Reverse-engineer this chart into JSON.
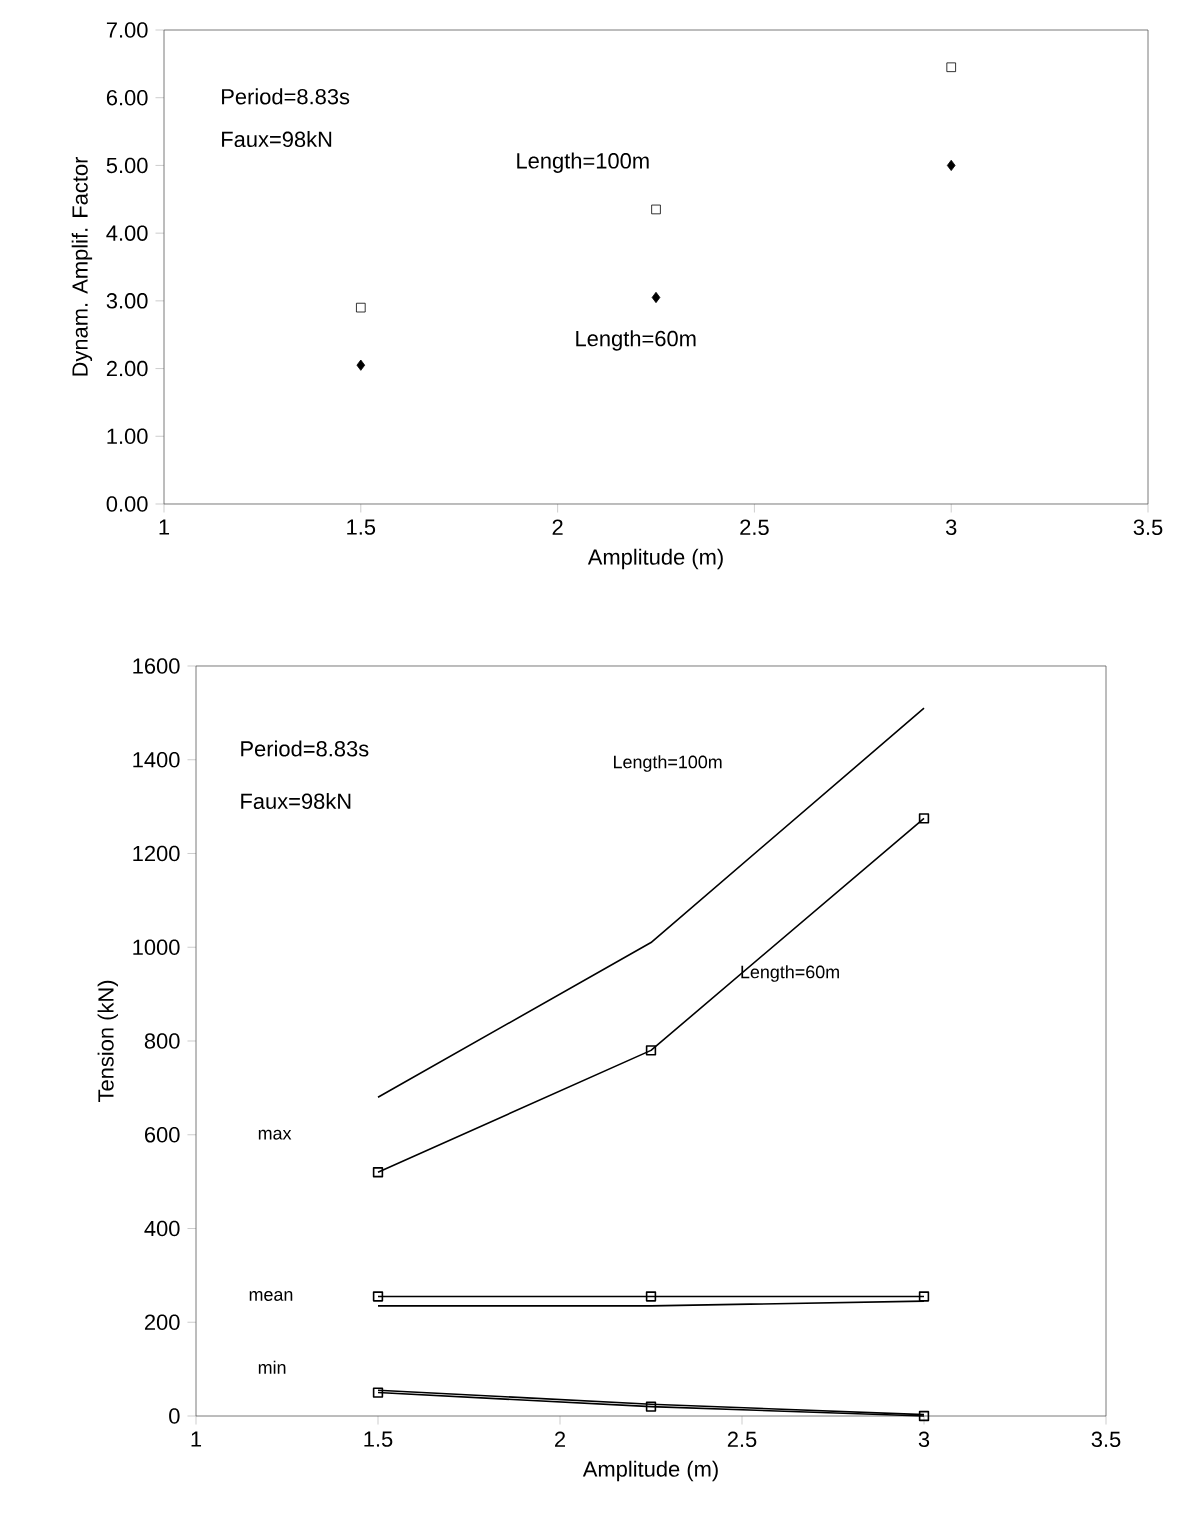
{
  "chart_data": [
    {
      "type": "scatter",
      "xlabel": "Amplitude (m)",
      "ylabel": "Dynam. Amplif. Factor",
      "x": [
        1.5,
        2.25,
        3
      ],
      "series": [
        {
          "color": "#000000",
          "marker": "square",
          "values": [
            2.9,
            4.35,
            6.45
          ]
        },
        {
          "color": "#000000",
          "marker": "diamond",
          "values": [
            2.05,
            3.05,
            5.0
          ]
        }
      ],
      "xlim": [
        1,
        3.5
      ],
      "xticks": [
        1,
        1.5,
        2,
        2.5,
        3,
        3.5
      ],
      "ylim": [
        0,
        7
      ],
      "yticks": [
        {
          "value": 0,
          "label": "0.00"
        },
        {
          "value": 1,
          "label": "1.00"
        },
        {
          "value": 2,
          "label": "2.00"
        },
        {
          "value": 3,
          "label": "3.00"
        },
        {
          "value": 4,
          "label": "4.00"
        },
        {
          "value": 5,
          "label": "5.00"
        },
        {
          "value": 6,
          "label": "6.00"
        },
        {
          "value": 7,
          "label": "7.00"
        }
      ],
      "grid": false,
      "annotations": [
        "Period=8.83s",
        "Faux=98kN",
        "Length=100m",
        "Length=60m"
      ]
    },
    {
      "type": "line",
      "xlabel": "Amplitude (m)",
      "ylabel": "Tension (kN)",
      "x": [
        1.5,
        2.25,
        3
      ],
      "series": [
        {
          "color": "#000000",
          "marker": "none",
          "values": [
            680,
            1010,
            1510
          ]
        },
        {
          "color": "#000000",
          "marker": "square",
          "values": [
            520,
            780,
            1275
          ]
        },
        {
          "color": "#000000",
          "marker": "none",
          "values": [
            235,
            235,
            245
          ]
        },
        {
          "color": "#000000",
          "marker": "square",
          "values": [
            255,
            255,
            255
          ]
        },
        {
          "color": "#000000",
          "marker": "none",
          "values": [
            55,
            25,
            3
          ]
        },
        {
          "color": "#000000",
          "marker": "square",
          "values": [
            50,
            20,
            0
          ]
        }
      ],
      "xlim": [
        1,
        3.5
      ],
      "xticks": [
        1,
        1.5,
        2,
        2.5,
        3,
        3.5
      ],
      "ylim": [
        0,
        1600
      ],
      "yticks": [
        0,
        200,
        400,
        600,
        800,
        1000,
        1200,
        1400,
        1600
      ],
      "grid": false,
      "line_style": "solid",
      "annotations": [
        "Period=8.83s",
        "Faux=98kN",
        "Length=100m",
        "Length=60m",
        "max",
        "mean",
        "min"
      ]
    }
  ]
}
